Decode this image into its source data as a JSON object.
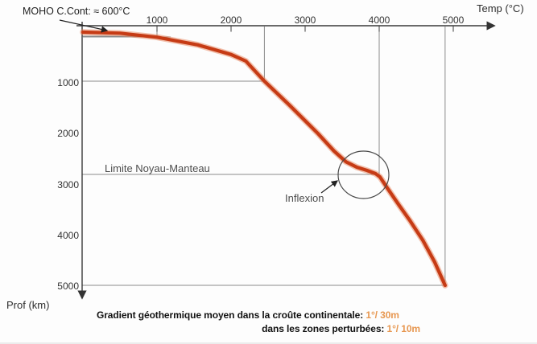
{
  "labels": {
    "moho": "MOHO C.Cont: ≈ 600°C",
    "x_axis": "Temp (°C)",
    "y_axis": "Prof (km)",
    "limite": "Limite Noyau-Manteau",
    "inflexion": "Inflexion"
  },
  "caption": {
    "line1_text": "Gradient géothermique moyen dans la croûte continentale:",
    "line1_value": "1°/ 30m",
    "line2_text": "dans les zones perturbées:",
    "line2_value": "1°/ 10m"
  },
  "colors": {
    "curve": "#c63b15",
    "curve_halo": "#e8835c",
    "caption_highlight": "#e79750",
    "axis": "#3a3a3a",
    "guide": "#8a8a8a",
    "annotation": "#4a4a4a"
  },
  "chart_data": {
    "type": "line",
    "xlabel": "Temp (°C)",
    "ylabel": "Prof (km)",
    "x_ticks": [
      1000,
      2000,
      3000,
      4000,
      5000
    ],
    "y_ticks": [
      1000,
      2000,
      3000,
      4000,
      5000
    ],
    "xlim": [
      0,
      5600
    ],
    "ylim": [
      0,
      5300
    ],
    "legend": false,
    "grid": false,
    "series": [
      {
        "name": "geotherme",
        "points": [
          [
            0,
            0
          ],
          [
            500,
            20
          ],
          [
            1000,
            100
          ],
          [
            1550,
            250
          ],
          [
            2000,
            440
          ],
          [
            2200,
            570
          ],
          [
            2450,
            965
          ],
          [
            2790,
            1440
          ],
          [
            3170,
            1990
          ],
          [
            3390,
            2340
          ],
          [
            3550,
            2550
          ],
          [
            3700,
            2660
          ],
          [
            3830,
            2720
          ],
          [
            3950,
            2785
          ],
          [
            4010,
            2850
          ],
          [
            4120,
            3090
          ],
          [
            4260,
            3390
          ],
          [
            4420,
            3720
          ],
          [
            4590,
            4100
          ],
          [
            4750,
            4530
          ],
          [
            4890,
            4985
          ]
        ]
      }
    ],
    "guides": [
      {
        "temp": 1000,
        "depth": 80
      },
      {
        "temp": 2450,
        "depth": 965
      },
      {
        "temp": 4000,
        "depth": 2800
      },
      {
        "temp": 4890,
        "depth": 4985
      }
    ],
    "annotations": [
      {
        "text": "MOHO C.Cont: ≈ 600°C",
        "points_to": {
          "temp": 350,
          "depth": 0
        }
      },
      {
        "text": "Limite Noyau-Manteau",
        "depth": 2800
      },
      {
        "text": "Inflexion",
        "points_to": {
          "temp": 3950,
          "depth": 2850
        }
      }
    ]
  }
}
